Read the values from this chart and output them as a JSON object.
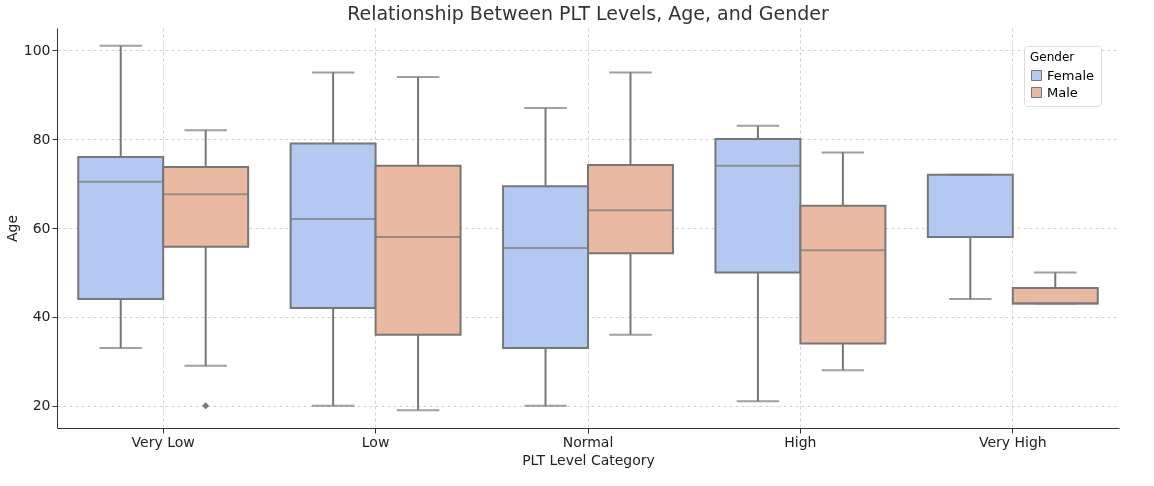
{
  "chart_data": {
    "type": "box",
    "title": "Relationship Between PLT Levels, Age, and Gender",
    "xlabel": "PLT Level Category",
    "ylabel": "Age",
    "legend_title": "Gender",
    "categories": [
      "Very Low",
      "Low",
      "Normal",
      "High",
      "Very High"
    ],
    "series": [
      {
        "name": "Female",
        "color": "#b4c9f1",
        "boxes": [
          {
            "low": 33,
            "q1": 44,
            "median": 70.4,
            "q3": 76,
            "high": 101
          },
          {
            "low": 20,
            "q1": 42,
            "median": 62,
            "q3": 79,
            "high": 95
          },
          {
            "low": 20,
            "q1": 33,
            "median": 55.5,
            "q3": 69.4,
            "high": 87
          },
          {
            "low": 21,
            "q1": 50,
            "median": 74,
            "q3": 80,
            "high": 83
          },
          {
            "low": 44,
            "q1": 58,
            "median": 58,
            "q3": 72,
            "high": 72
          }
        ]
      },
      {
        "name": "Male",
        "color": "#eab9a1",
        "boxes": [
          {
            "low": 29,
            "q1": 55.8,
            "median": 67.6,
            "q3": 73.7,
            "high": 82,
            "outliers": [
              20
            ]
          },
          {
            "low": 19,
            "q1": 36,
            "median": 58,
            "q3": 74,
            "high": 94
          },
          {
            "low": 36,
            "q1": 54.3,
            "median": 64,
            "q3": 74.2,
            "high": 95
          },
          {
            "low": 28,
            "q1": 34,
            "median": 55,
            "q3": 65,
            "high": 77
          },
          {
            "low": 43,
            "q1": 43,
            "median": 43,
            "q3": 46.5,
            "high": 50
          }
        ]
      }
    ],
    "ylim": [
      15,
      105
    ],
    "yticks": [
      20,
      40,
      60,
      80,
      100
    ],
    "grid": true,
    "legend": "top right"
  }
}
